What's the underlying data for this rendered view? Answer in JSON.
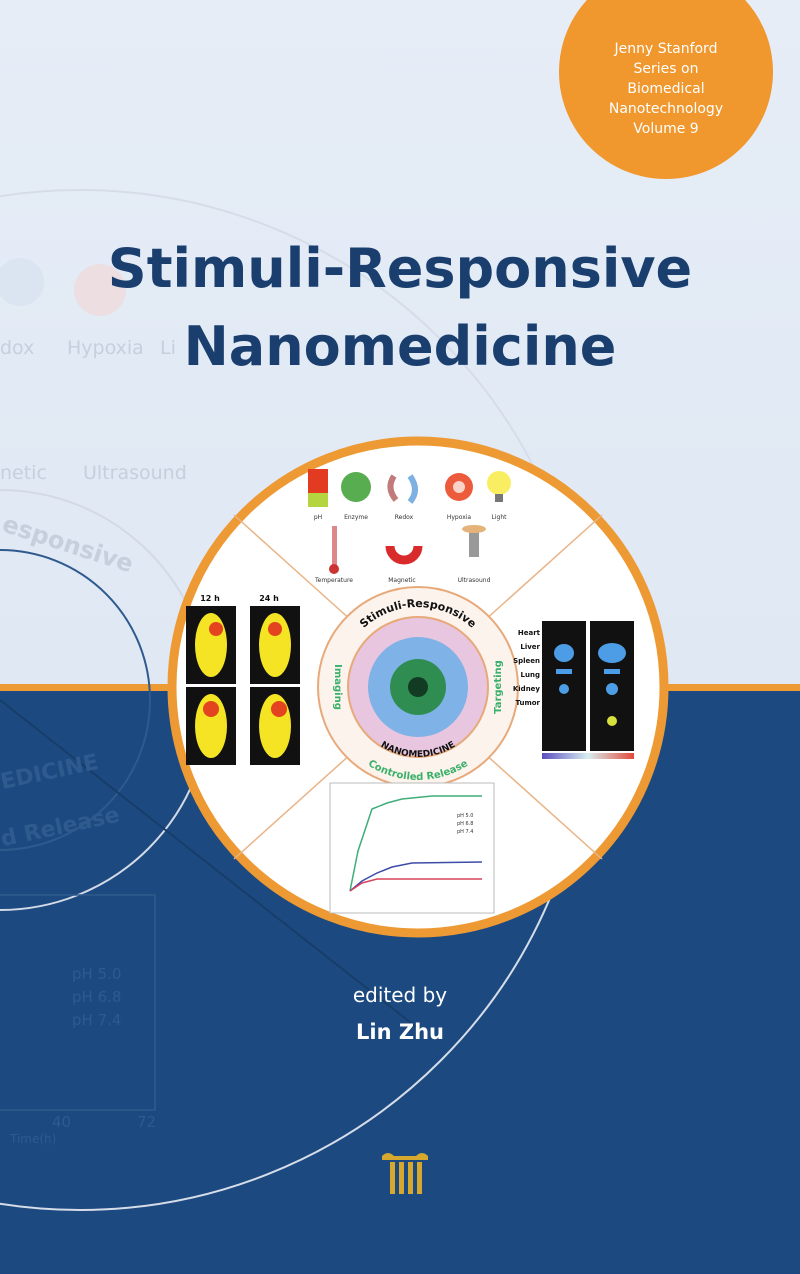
{
  "series_badge": {
    "lines": [
      "Jenny Stanford",
      "Series on",
      "Biomedical",
      "Nanotechnology",
      "Volume 9"
    ]
  },
  "title": {
    "line1": "Stimuli-Responsive",
    "line2": "Nanomedicine"
  },
  "editor": {
    "prefix": "edited by",
    "name": "Lin Zhu"
  },
  "background_watermark": {
    "labels": [
      "dox",
      "Hypoxia",
      "Li",
      "netic",
      "Ultrasound",
      "esponsive",
      "EDICINE",
      "d Release",
      "pH 5.0",
      "pH 6.8",
      "pH 7.4",
      "40",
      "72",
      "Time(h)"
    ]
  },
  "figure": {
    "stimuli": [
      "pH",
      "Enzyme",
      "Redox",
      "Hypoxia",
      "Light",
      "Temperature",
      "Magnetic",
      "Ultrasound"
    ],
    "imaging_times": [
      "12 h",
      "24 h"
    ],
    "organs": [
      "Heart",
      "Liver",
      "Spleen",
      "Lung",
      "Kidney",
      "Tumor"
    ],
    "ring_labels": {
      "top": "Stimuli-Responsive",
      "bottom": "NANOMEDICINE",
      "left": "Imaging",
      "right": "Targeting",
      "lower": "Controlled Release"
    },
    "release_legend": [
      "pH 5.0",
      "pH 6.8",
      "pH 7.4"
    ]
  },
  "colors": {
    "navy": "#1c4a80",
    "orange": "#ee9a34",
    "title": "#1a3f6f",
    "background": "#e3ebf5"
  }
}
